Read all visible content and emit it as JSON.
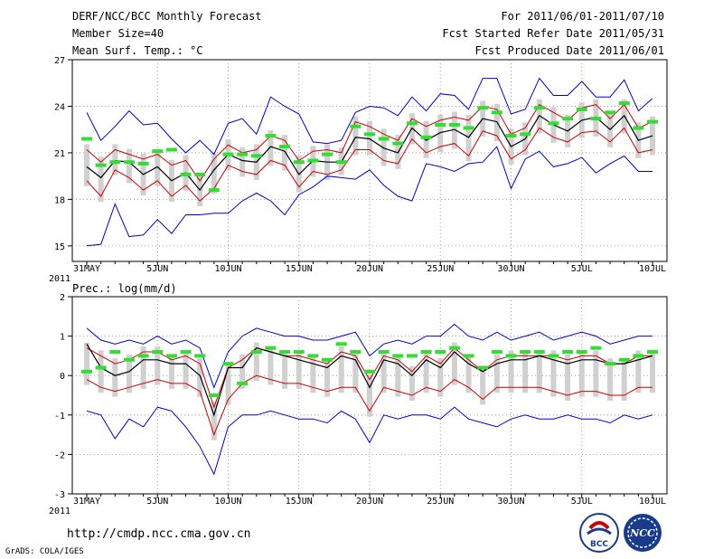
{
  "header": {
    "title": "DERF/NCC/BCC Monthly Forecast",
    "member_size": "Member Size=40",
    "variable": "Mean Surf. Temp.: °C",
    "period": "For 2011/06/01-2011/07/10",
    "start_date": "Fcst Started Refer Date 2011/05/31",
    "produced_date": "Fcst Produced Date 2011/06/01"
  },
  "footer": {
    "url": "http://cmdp.ncc.cma.gov.cn",
    "credit": "GrADS: COLA/IGES",
    "logo_bcc_text": "BCC",
    "logo_ncc_text": "NCC"
  },
  "x_tick_labels": [
    "31MAY",
    "5JUN",
    "10JUN",
    "15JUN",
    "20JUN",
    "25JUN",
    "30JUN",
    "5JUL",
    "10JUL"
  ],
  "x_year_label": "2011",
  "colors": {
    "mean": "#000000",
    "spread": "#cc0000",
    "extreme": "#0000cc",
    "box": "#d0d0d0",
    "median": "#33dd33"
  },
  "chart_data": [
    {
      "type": "line",
      "title": "Mean Surf. Temp.: °C",
      "x_days": [
        0,
        1,
        2,
        3,
        4,
        5,
        6,
        7,
        8,
        9,
        10,
        11,
        12,
        13,
        14,
        15,
        16,
        17,
        18,
        19,
        20,
        21,
        22,
        23,
        24,
        25,
        26,
        27,
        28,
        29,
        30,
        31,
        32,
        33,
        34,
        35,
        36,
        37,
        38,
        39,
        40
      ],
      "ylim": [
        14,
        27
      ],
      "yticks": [
        15,
        18,
        21,
        24,
        27
      ],
      "series": [
        {
          "name": "ensemble max",
          "values": [
            15.0,
            15.1,
            17.7,
            15.6,
            15.7,
            16.7,
            15.8,
            17.0,
            17.0,
            17.1,
            17.1,
            17.9,
            18.4,
            17.9,
            17.0,
            18.3,
            18.8,
            19.5,
            19.4,
            19.3,
            19.9,
            18.9,
            18.2,
            17.9,
            20.3,
            20.1,
            19.8,
            20.3,
            20.4,
            21.4,
            18.7,
            20.6,
            21.1,
            20.1,
            20.3,
            20.7,
            19.7,
            20.3,
            20.8,
            19.8,
            19.8
          ]
        },
        {
          "name": "ensemble min",
          "values": [
            23.6,
            21.8,
            22.7,
            23.7,
            22.8,
            22.9,
            21.9,
            21.0,
            21.8,
            20.9,
            22.9,
            23.2,
            22.2,
            24.6,
            24.0,
            23.5,
            21.7,
            21.6,
            21.8,
            23.6,
            24.0,
            23.9,
            23.4,
            24.6,
            23.7,
            24.8,
            24.7,
            23.8,
            25.8,
            25.8,
            23.5,
            23.8,
            25.8,
            24.7,
            24.7,
            25.6,
            24.6,
            24.6,
            25.7,
            23.7,
            24.5
          ]
        },
        {
          "name": "mean + sd",
          "values": [
            21.2,
            20.4,
            21.2,
            20.9,
            20.6,
            20.9,
            20.2,
            20.5,
            19.2,
            20.6,
            21.5,
            21.0,
            21.2,
            22.1,
            21.8,
            20.5,
            21.1,
            21.2,
            21.0,
            23.0,
            22.7,
            22.2,
            21.8,
            23.2,
            22.7,
            23.1,
            23.3,
            23.1,
            24.0,
            23.8,
            22.2,
            22.6,
            24.1,
            23.6,
            23.1,
            23.9,
            24.1,
            23.2,
            24.1,
            22.6,
            23.0
          ]
        },
        {
          "name": "mean - sd",
          "values": [
            19.2,
            18.2,
            19.9,
            19.4,
            18.6,
            19.2,
            18.2,
            18.9,
            17.9,
            18.7,
            20.2,
            19.8,
            19.6,
            20.5,
            20.2,
            18.8,
            19.8,
            19.6,
            19.9,
            21.2,
            21.2,
            20.5,
            20.3,
            21.9,
            21.0,
            21.4,
            21.6,
            20.8,
            22.4,
            22.1,
            20.6,
            21.2,
            22.6,
            22.0,
            21.7,
            22.3,
            22.4,
            21.7,
            22.6,
            21.0,
            21.2
          ]
        },
        {
          "name": "mean",
          "values": [
            20.1,
            19.4,
            20.5,
            20.4,
            19.6,
            20.1,
            19.2,
            19.7,
            18.6,
            19.9,
            20.9,
            20.5,
            20.4,
            21.4,
            21.1,
            19.6,
            20.5,
            20.4,
            20.4,
            22.0,
            21.9,
            21.3,
            21.0,
            22.6,
            21.8,
            22.3,
            22.5,
            22.0,
            23.2,
            23.0,
            21.4,
            21.9,
            23.4,
            22.8,
            22.4,
            23.1,
            23.3,
            22.5,
            23.4,
            21.8,
            22.1
          ]
        },
        {
          "name": "ensemble median",
          "values": [
            21.9,
            20.2,
            20.4,
            20.4,
            20.3,
            21.1,
            21.2,
            19.6,
            19.6,
            18.6,
            20.9,
            20.9,
            20.8,
            22.1,
            21.4,
            20.4,
            20.5,
            20.9,
            20.4,
            22.7,
            22.2,
            21.9,
            21.6,
            22.9,
            22.0,
            22.8,
            22.8,
            22.6,
            23.9,
            23.6,
            22.1,
            22.2,
            23.9,
            22.9,
            23.2,
            23.8,
            23.2,
            23.6,
            24.2,
            22.6,
            23.0
          ]
        }
      ]
    },
    {
      "type": "line",
      "title": "Prec.: log(mm/d)",
      "x_days": [
        0,
        1,
        2,
        3,
        4,
        5,
        6,
        7,
        8,
        9,
        10,
        11,
        12,
        13,
        14,
        15,
        16,
        17,
        18,
        19,
        20,
        21,
        22,
        23,
        24,
        25,
        26,
        27,
        28,
        29,
        30,
        31,
        32,
        33,
        34,
        35,
        36,
        37,
        38,
        39,
        40
      ],
      "ylim": [
        -3,
        2
      ],
      "yticks": [
        -3,
        -2,
        -1,
        0,
        1,
        2
      ],
      "series": [
        {
          "name": "ensemble min",
          "values": [
            -0.9,
            -1.0,
            -1.6,
            -1.1,
            -1.3,
            -0.8,
            -0.9,
            -1.3,
            -1.8,
            -2.5,
            -1.3,
            -1.0,
            -1.0,
            -0.9,
            -1.0,
            -1.1,
            -1.1,
            -1.2,
            -0.9,
            -1.1,
            -1.7,
            -1.0,
            -1.1,
            -1.0,
            -1.0,
            -1.1,
            -0.8,
            -1.1,
            -1.2,
            -1.3,
            -1.1,
            -1.0,
            -1.1,
            -1.1,
            -1.0,
            -1.1,
            -1.1,
            -1.2,
            -1.0,
            -1.1,
            -1.0
          ]
        },
        {
          "name": "ensemble max",
          "values": [
            1.2,
            0.9,
            0.8,
            0.9,
            0.8,
            1.0,
            0.8,
            0.9,
            0.7,
            -0.3,
            0.6,
            1.0,
            1.2,
            1.1,
            1.0,
            1.0,
            0.9,
            0.9,
            1.0,
            1.1,
            0.5,
            0.8,
            0.9,
            0.8,
            1.0,
            1.0,
            1.3,
            1.0,
            0.9,
            1.1,
            0.9,
            1.0,
            1.1,
            0.9,
            1.0,
            1.1,
            1.0,
            0.8,
            0.9,
            1.0,
            1.0
          ]
        },
        {
          "name": "mean + sd",
          "values": [
            0.7,
            0.5,
            0.3,
            0.4,
            0.6,
            0.6,
            0.4,
            0.5,
            0.3,
            -0.8,
            0.2,
            0.4,
            0.7,
            0.6,
            0.5,
            0.5,
            0.4,
            0.3,
            0.6,
            0.5,
            -0.1,
            0.5,
            0.4,
            0.1,
            0.5,
            0.3,
            0.7,
            0.4,
            0.1,
            0.4,
            0.5,
            0.5,
            0.5,
            0.5,
            0.4,
            0.5,
            0.5,
            0.3,
            0.3,
            0.5,
            0.5
          ]
        },
        {
          "name": "mean - sd",
          "values": [
            -0.1,
            -0.3,
            -0.4,
            -0.3,
            -0.2,
            -0.1,
            -0.2,
            -0.2,
            -0.4,
            -1.5,
            -0.6,
            -0.2,
            0.0,
            -0.1,
            -0.2,
            -0.2,
            -0.3,
            -0.4,
            -0.3,
            -0.3,
            -0.9,
            -0.3,
            -0.4,
            -0.5,
            -0.3,
            -0.4,
            -0.1,
            -0.3,
            -0.6,
            -0.3,
            -0.3,
            -0.3,
            -0.3,
            -0.4,
            -0.5,
            -0.4,
            -0.4,
            -0.5,
            -0.5,
            -0.3,
            -0.3
          ]
        },
        {
          "name": "mean",
          "values": [
            0.8,
            0.2,
            0.0,
            0.1,
            0.4,
            0.4,
            0.3,
            0.3,
            0.0,
            -1.0,
            0.2,
            0.2,
            0.7,
            0.6,
            0.5,
            0.4,
            0.3,
            0.2,
            0.5,
            0.4,
            -0.3,
            0.4,
            0.3,
            0.0,
            0.4,
            0.2,
            0.6,
            0.3,
            0.1,
            0.3,
            0.4,
            0.4,
            0.5,
            0.4,
            0.3,
            0.4,
            0.4,
            0.3,
            0.3,
            0.4,
            0.5
          ]
        },
        {
          "name": "ensemble median",
          "values": [
            0.1,
            0.2,
            0.6,
            0.4,
            0.5,
            0.6,
            0.5,
            0.6,
            0.5,
            -0.5,
            0.3,
            -0.2,
            0.6,
            0.7,
            0.6,
            0.6,
            0.5,
            0.4,
            0.8,
            0.6,
            0.1,
            0.6,
            0.5,
            0.5,
            0.6,
            0.6,
            0.7,
            0.5,
            0.2,
            0.6,
            0.5,
            0.6,
            0.6,
            0.5,
            0.6,
            0.6,
            0.7,
            0.3,
            0.4,
            0.5,
            0.6
          ]
        }
      ]
    }
  ]
}
